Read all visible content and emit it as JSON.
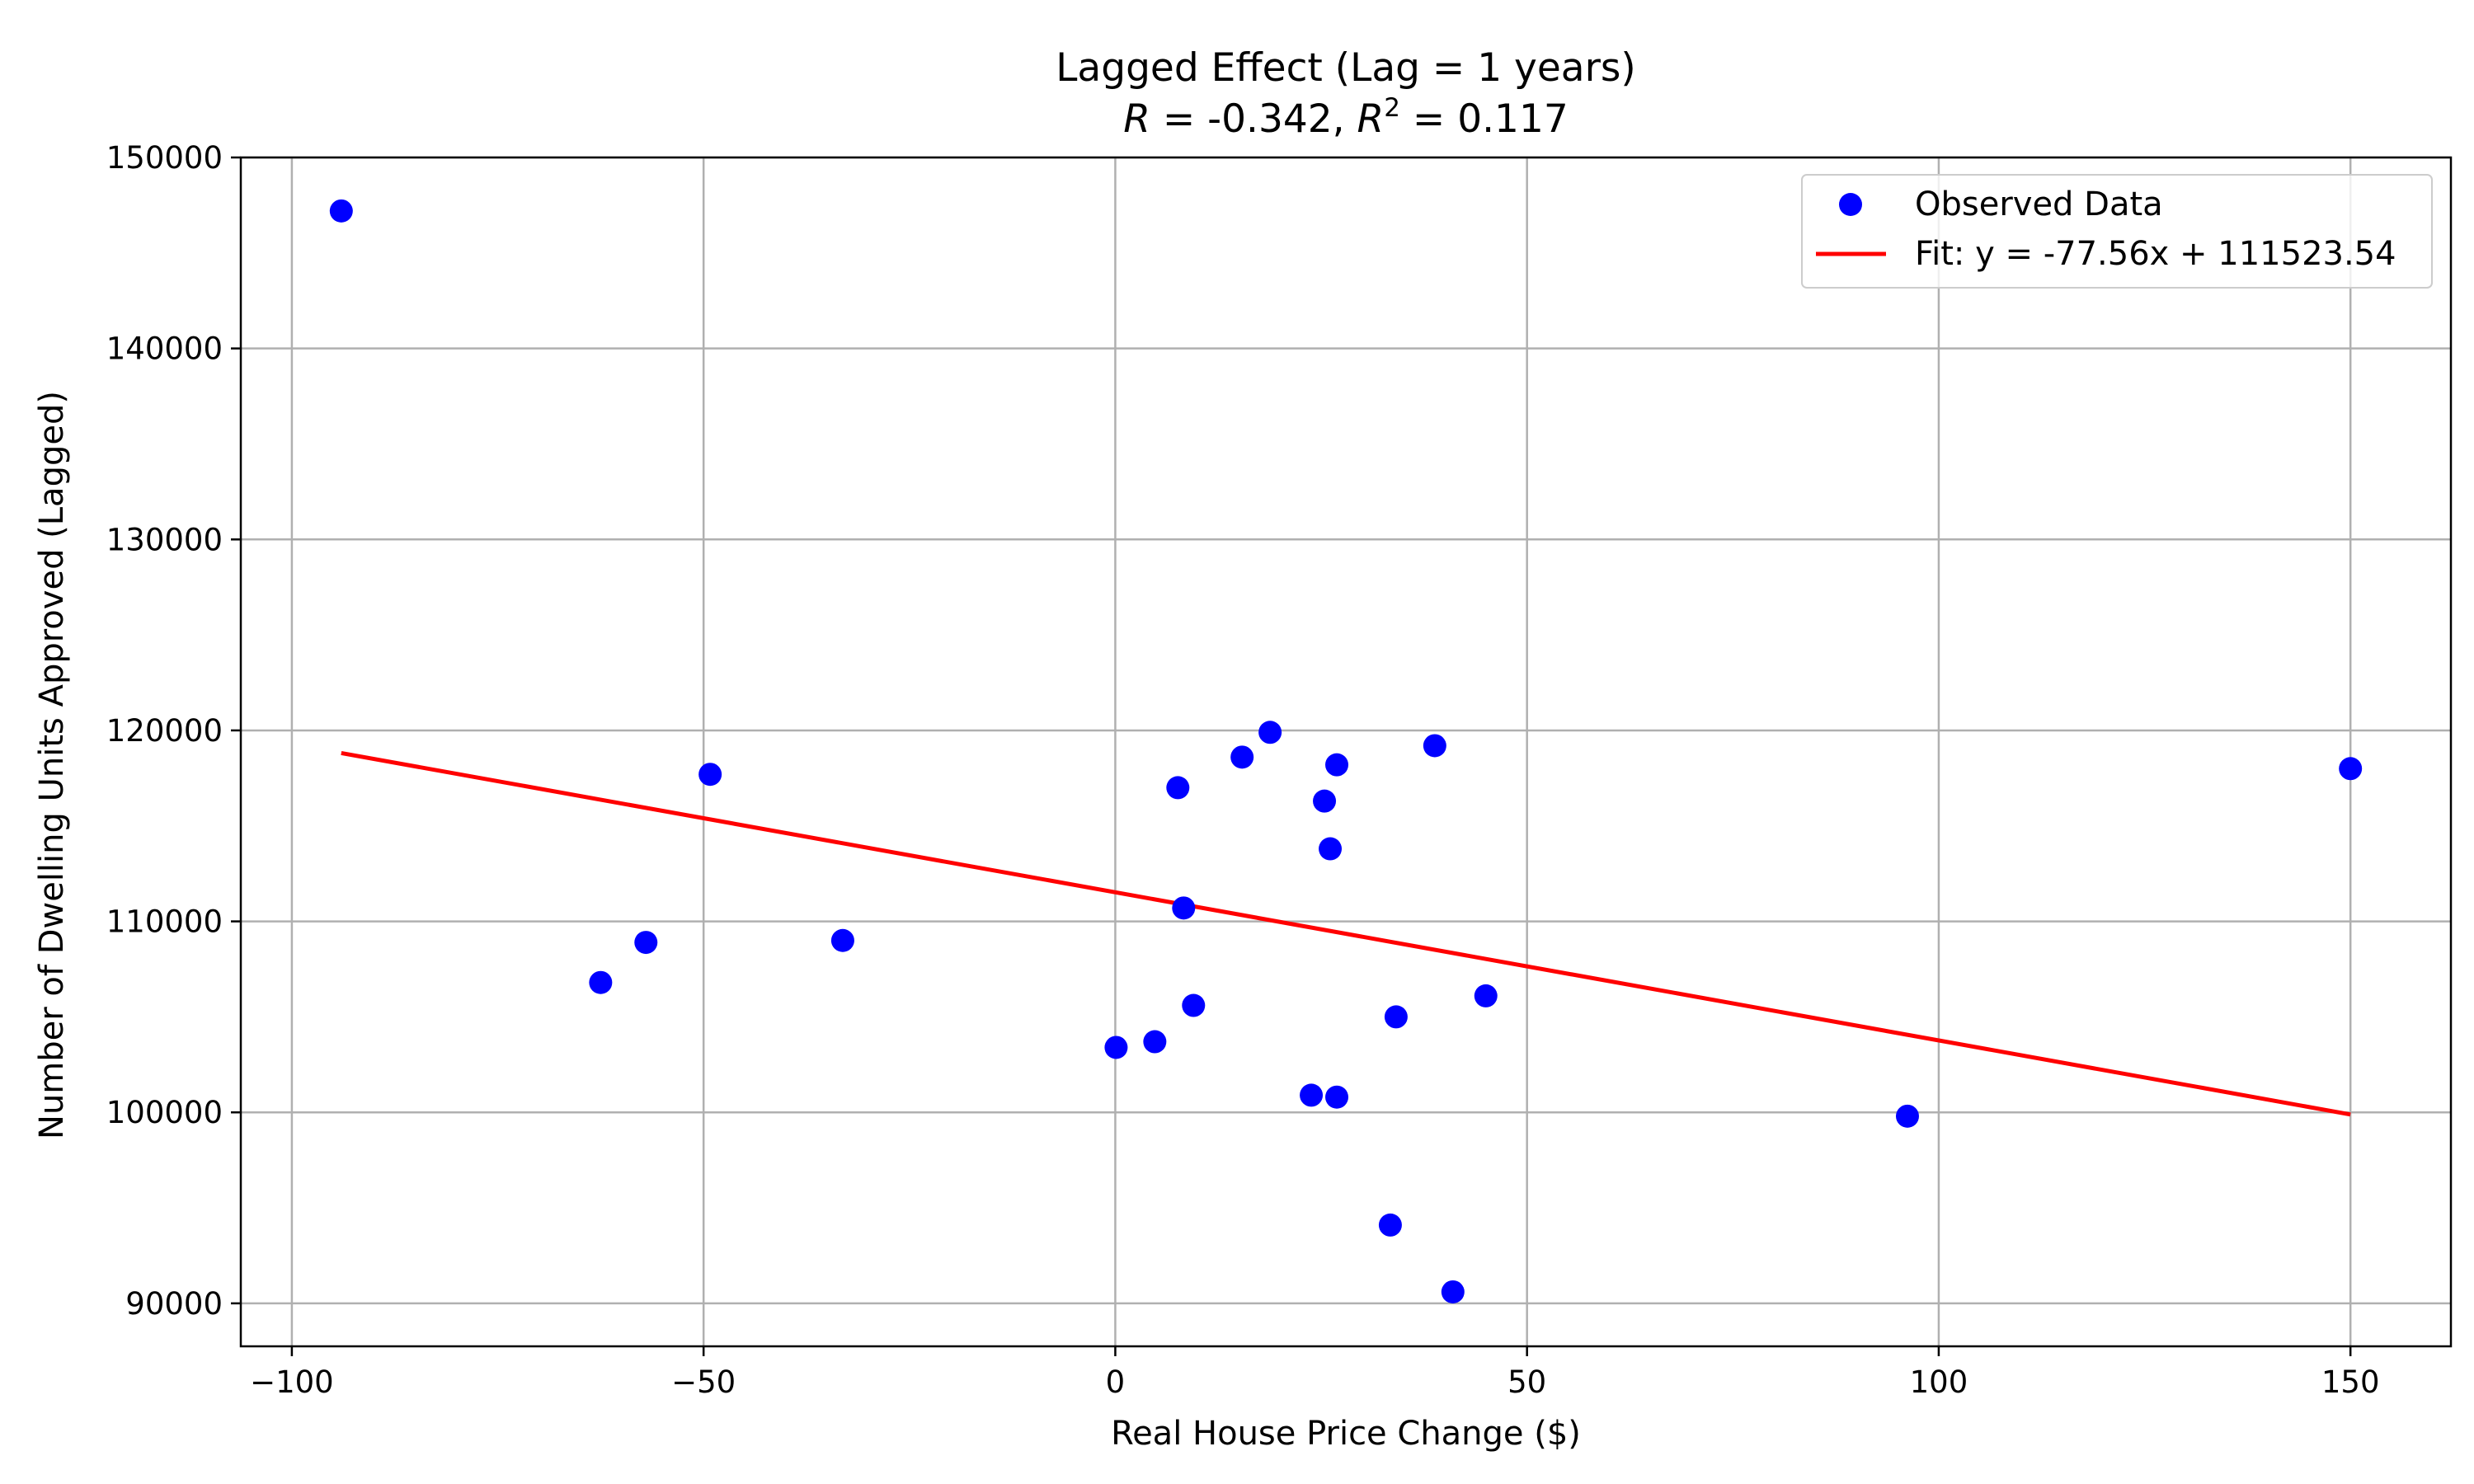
{
  "chart_data": {
    "type": "scatter",
    "title": "Lagged Effect (Lag = 1 years)",
    "subtitle": {
      "r_symbol": "R",
      "r_text": " = -0.342, ",
      "r2_symbol": "R",
      "r2_exponent": "2",
      "r2_text": " = 0.117"
    },
    "xlabel": "Real House Price Change ($)",
    "ylabel": "Number of Dwelling Units Approved (Lagged)",
    "xlim": [
      -106.2,
      162.2
    ],
    "ylim": [
      87750,
      150000
    ],
    "xticks": [
      -100,
      -50,
      0,
      50,
      100,
      150
    ],
    "xtick_labels": [
      "−100",
      "−50",
      "0",
      "50",
      "100",
      "150"
    ],
    "yticks": [
      90000,
      100000,
      110000,
      120000,
      130000,
      140000,
      150000
    ],
    "ytick_labels": [
      "90000",
      "100000",
      "110000",
      "120000",
      "130000",
      "140000",
      "150000"
    ],
    "grid": true,
    "legend_position": "top-right",
    "series": [
      {
        "name": "Observed Data",
        "kind": "scatter",
        "color": "#0000ff",
        "points": [
          [
            -94,
            147200
          ],
          [
            -62.5,
            106800
          ],
          [
            -57,
            108900
          ],
          [
            -49.2,
            117700
          ],
          [
            -33.1,
            109000
          ],
          [
            0.1,
            103400
          ],
          [
            4.8,
            103700
          ],
          [
            7.6,
            117000
          ],
          [
            8.3,
            110700
          ],
          [
            9.5,
            105600
          ],
          [
            15.4,
            118600
          ],
          [
            18.8,
            119900
          ],
          [
            23.8,
            100900
          ],
          [
            25.4,
            116300
          ],
          [
            26.1,
            113800
          ],
          [
            26.9,
            118200
          ],
          [
            26.9,
            100800
          ],
          [
            33.4,
            94100
          ],
          [
            34.1,
            105000
          ],
          [
            38.8,
            119200
          ],
          [
            41,
            90600
          ],
          [
            45,
            106100
          ],
          [
            96.2,
            99800
          ],
          [
            150,
            118000
          ]
        ]
      },
      {
        "name": "Fit: y = -77.56x + 111523.54",
        "kind": "line",
        "color": "#ff0000",
        "x": [
          -94,
          150
        ],
        "y": [
          118814.18,
          99889.54
        ]
      }
    ]
  }
}
